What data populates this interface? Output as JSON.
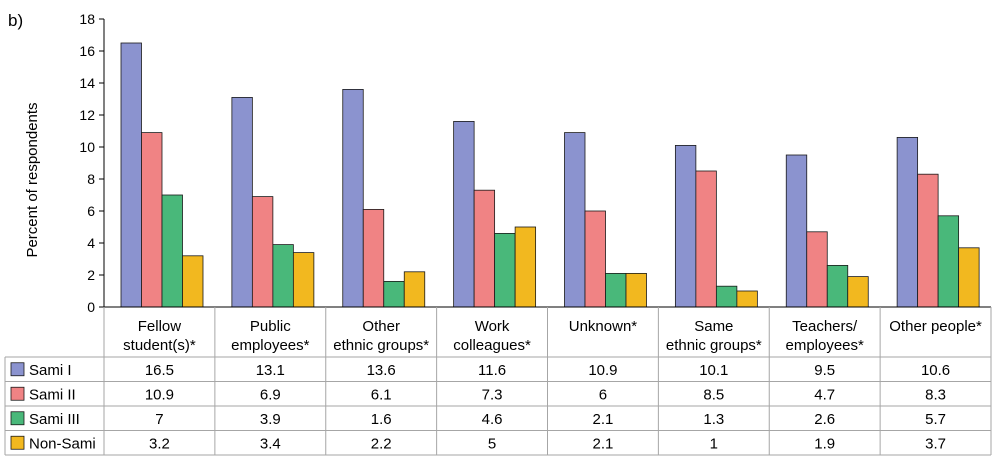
{
  "panel_label": "b)",
  "colors": {
    "Sami I": "#8b93cf",
    "Sami II": "#f08384",
    "Sami III": "#49b87a",
    "Non-Sami": "#f2b81f",
    "axis": "#000000",
    "grid": "#a6a6a6"
  },
  "chart_data": {
    "type": "bar",
    "ylabel": "Percent of respondents",
    "ylim": [
      0,
      18
    ],
    "yticks": [
      0,
      2,
      4,
      6,
      8,
      10,
      12,
      14,
      16,
      18
    ],
    "categories": [
      [
        "Fellow",
        "student(s)*"
      ],
      [
        "Public",
        "employees*"
      ],
      [
        "Other",
        "ethnic groups*"
      ],
      [
        "Work",
        "colleagues*"
      ],
      [
        "Unknown*"
      ],
      [
        "Same",
        "ethnic groups*"
      ],
      [
        "Teachers/",
        "employees*"
      ],
      [
        "Other people*"
      ]
    ],
    "series": [
      {
        "name": "Sami I",
        "values": [
          16.5,
          13.1,
          13.6,
          11.6,
          10.9,
          10.1,
          9.5,
          10.6
        ]
      },
      {
        "name": "Sami II",
        "values": [
          10.9,
          6.9,
          6.1,
          7.3,
          6,
          8.5,
          4.7,
          8.3
        ]
      },
      {
        "name": "Sami III",
        "values": [
          7,
          3.9,
          1.6,
          4.6,
          2.1,
          1.3,
          2.6,
          5.7
        ]
      },
      {
        "name": "Non-Sami",
        "values": [
          3.2,
          3.4,
          2.2,
          5,
          2.1,
          1,
          1.9,
          3.7
        ]
      }
    ],
    "table": true,
    "legend_placement": "table-left",
    "grid": false
  }
}
